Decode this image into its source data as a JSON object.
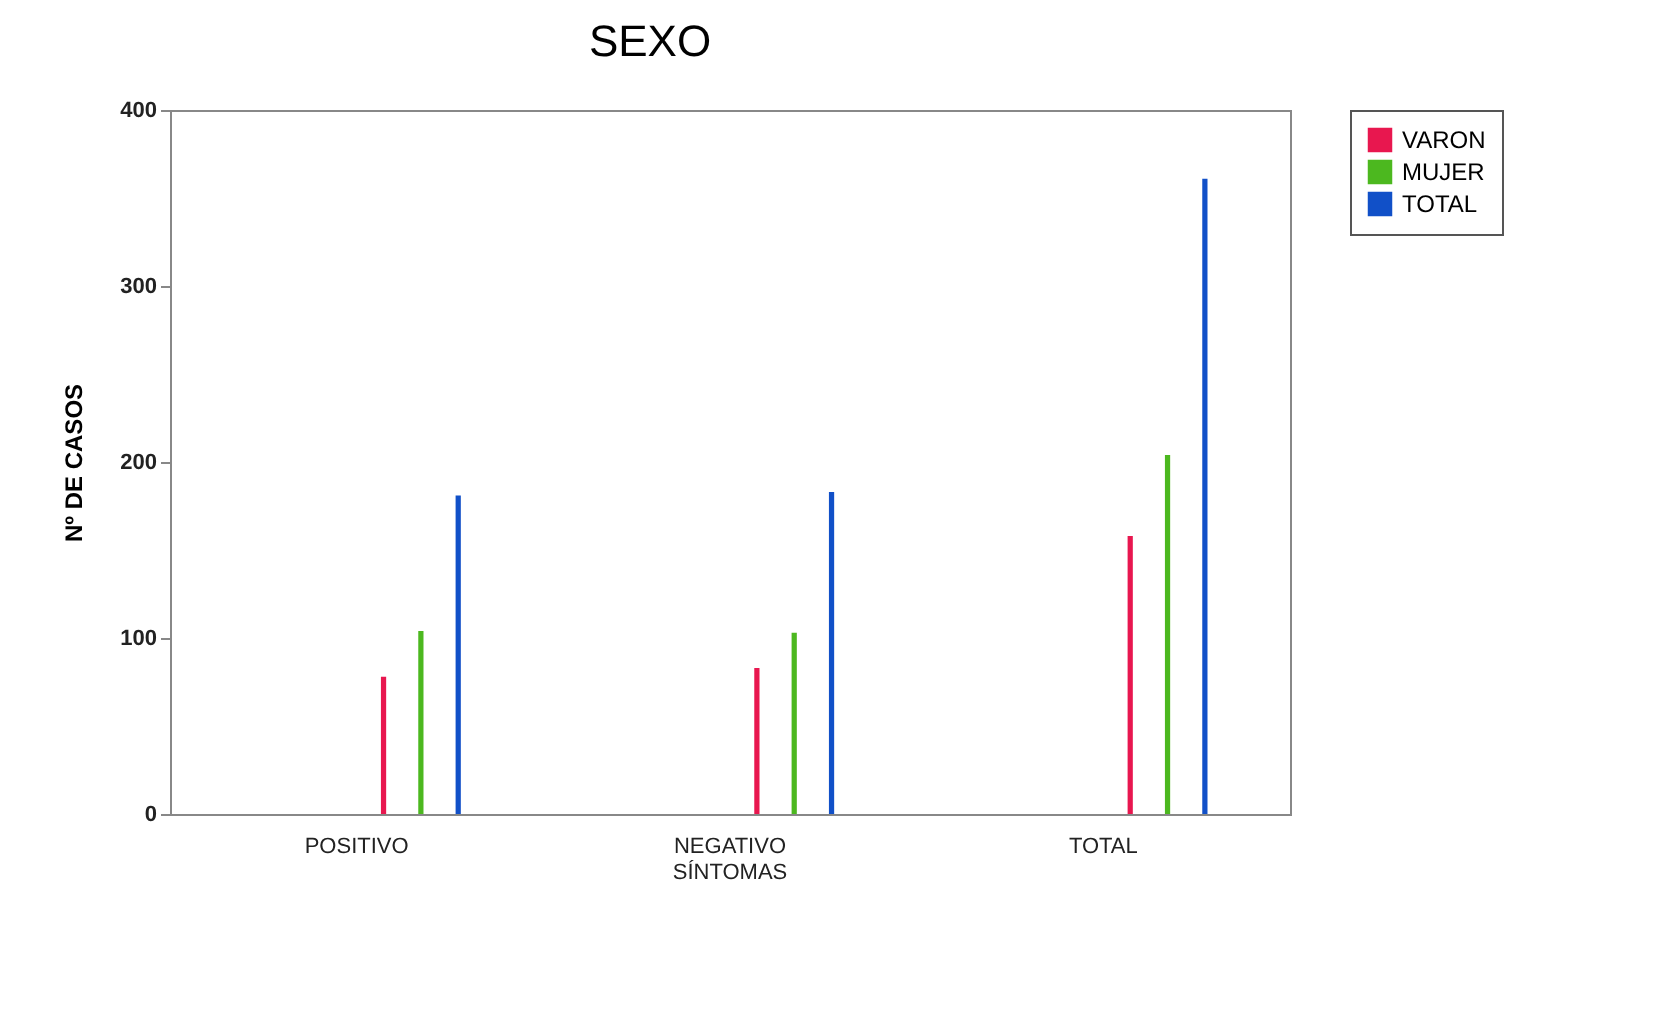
{
  "chart_data": {
    "type": "bar",
    "title": "SEXO",
    "ylabel": "Nº DE CASOS",
    "categories": [
      "POSITIVO",
      "NEGATIVO\nSÍNTOMAS",
      "TOTAL"
    ],
    "series": [
      {
        "name": "VARON",
        "color": "#e8174f",
        "values": [
          78,
          83,
          158
        ]
      },
      {
        "name": "MUJER",
        "color": "#4cb81f",
        "values": [
          104,
          103,
          204
        ]
      },
      {
        "name": "TOTAL",
        "color": "#1150c8",
        "values": [
          181,
          183,
          361
        ]
      }
    ],
    "ylim": [
      0,
      400
    ],
    "yticks": [
      0,
      100,
      200,
      300,
      400
    ],
    "grid": false,
    "legend": "right"
  }
}
